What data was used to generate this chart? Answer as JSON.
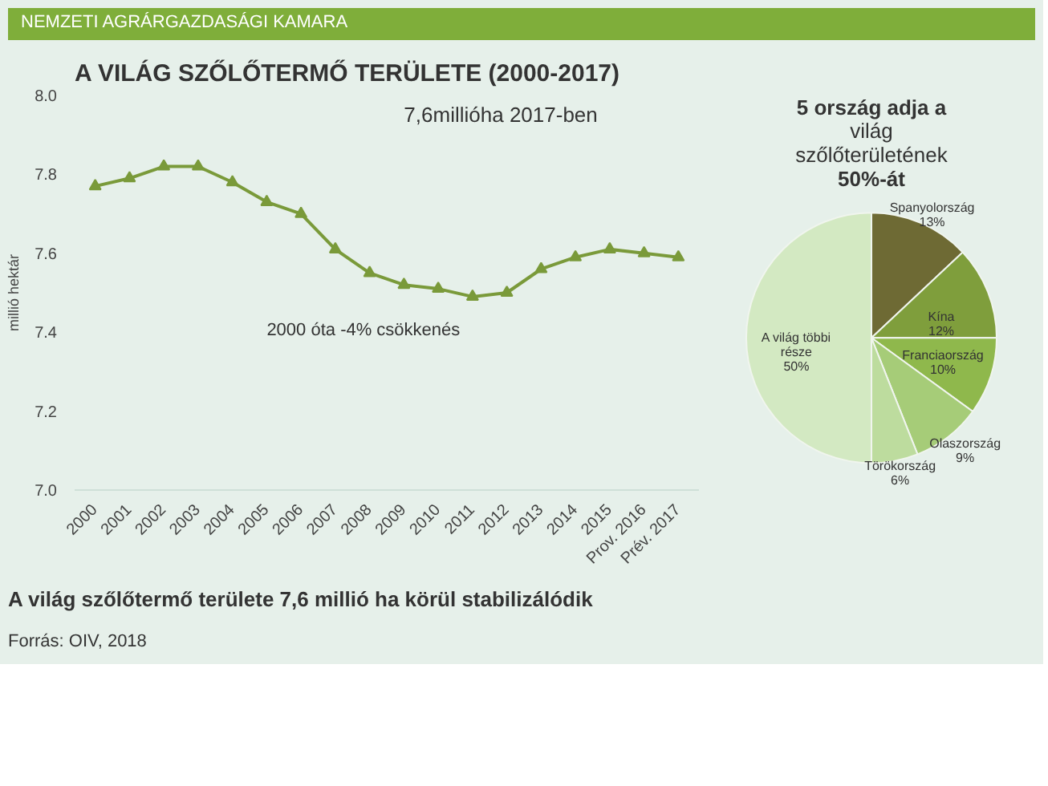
{
  "chart_data": [
    {
      "type": "line",
      "title": "A VILÁG SZŐLŐTERMŐ TERÜLETE (2000-2017)",
      "ylabel": "millió hektár",
      "categories": [
        "2000",
        "2001",
        "2002",
        "2003",
        "2004",
        "2005",
        "2006",
        "2007",
        "2008",
        "2009",
        "2010",
        "2011",
        "2012",
        "2013",
        "2014",
        "2015",
        "Prov. 2016",
        "Prév. 2017"
      ],
      "series": [
        {
          "color": "#7a9a3a",
          "values": [
            7.77,
            7.79,
            7.82,
            7.82,
            7.78,
            7.73,
            7.7,
            7.61,
            7.55,
            7.52,
            7.51,
            7.49,
            7.5,
            7.56,
            7.59,
            7.61,
            7.6,
            7.59
          ]
        }
      ],
      "ylim": [
        7.0,
        8.0
      ],
      "yticks": [
        {
          "value": 7.0,
          "label": "7.0"
        },
        7.2,
        7.4,
        7.6,
        7.8,
        {
          "value": 8.0,
          "label": "8.0"
        }
      ],
      "marker": "triangle",
      "grid": false,
      "annotations": [
        "NEMZETI AGRÁRGAZDASÁGI KAMARA",
        "7,6millióha 2017-ben",
        "2000 óta -4% csökkenés",
        "A világ szőlőtermő területe 7,6 millió ha körül stabilizálódik",
        "Forrás: OIV, 2018"
      ]
    },
    {
      "type": "pie",
      "title": "5 ország adja a világ szőlőterületének 50%-át",
      "categories": [
        "Spanyolország",
        "Kína",
        "Franciaország",
        "Olaszország",
        "Törökország",
        "A világ többi része"
      ],
      "values": [
        13,
        12,
        10,
        9,
        6,
        50
      ],
      "colors": [
        "#6e6a34",
        "#7f9e3c",
        "#8fb84c",
        "#a6cc78",
        "#bddc9e",
        "#d3e9c2"
      ],
      "value_labels": [
        "13%",
        "12%",
        "10%",
        "9%",
        "6%",
        "50%"
      ]
    }
  ]
}
